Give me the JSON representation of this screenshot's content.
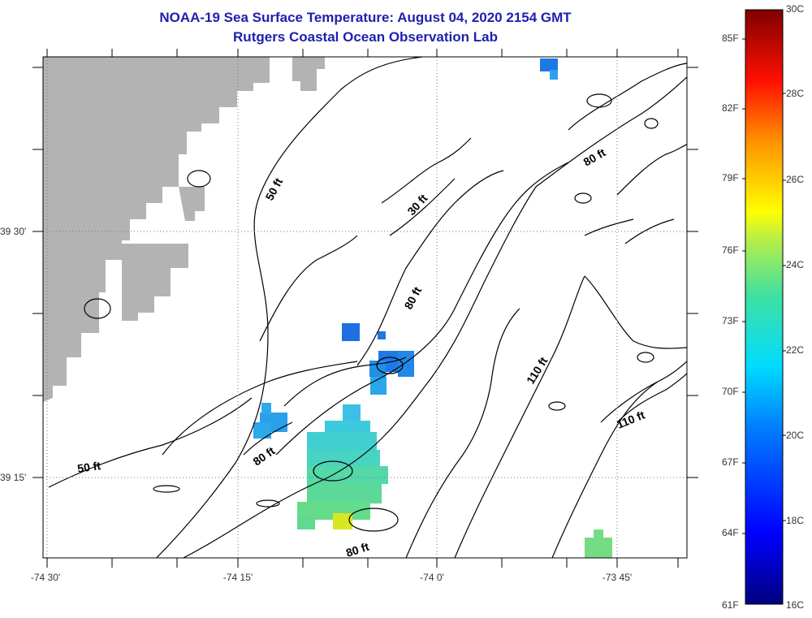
{
  "header": {
    "title": "NOAA-19 Sea Surface Temperature:  August 04, 2020 2154 GMT",
    "subtitle": "Rutgers Coastal Ocean Observation Lab"
  },
  "axes": {
    "lat_labels": [
      "39 30'",
      "39 15'"
    ],
    "lon_labels": [
      "-74 30'",
      "-74 15'",
      "-74 0'",
      "-73 45'"
    ]
  },
  "contours": [
    "50 ft",
    "50 ft",
    "30 ft",
    "80 ft",
    "80 ft",
    "80 ft",
    "80 ft",
    "110 ft",
    "110 ft"
  ],
  "colorbar": {
    "f_labels": [
      "85F",
      "82F",
      "79F",
      "76F",
      "73F",
      "70F",
      "67F",
      "64F",
      "61F"
    ],
    "c_labels": [
      "30C",
      "28C",
      "26C",
      "24C",
      "22C",
      "20C",
      "18C",
      "16C"
    ]
  },
  "colors": {
    "land": "#b3b3b3",
    "title": "#1f1fb0",
    "sst_blue": "#1e78e6",
    "sst_cyan": "#3cd2dc",
    "sst_green": "#64dc8c",
    "sst_yellow": "#e6e614"
  }
}
